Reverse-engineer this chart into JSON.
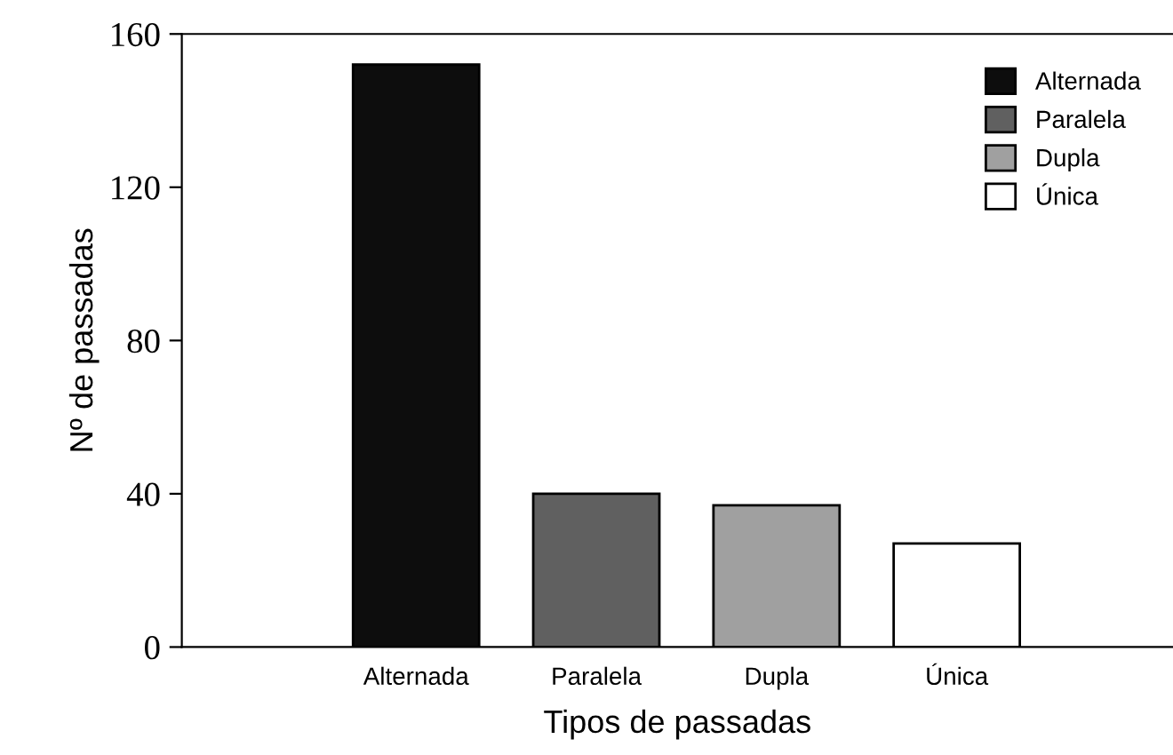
{
  "chart_data": {
    "type": "bar",
    "xlabel": "Tipos de passadas",
    "ylabel": "Nº de passadas",
    "categories": [
      "Alternada",
      "Paralela",
      "Dupla",
      "Única"
    ],
    "series": [
      {
        "name": "Alternada",
        "color": "#0d0d0d",
        "values": [
          152,
          null,
          null,
          null
        ]
      },
      {
        "name": "Paralela",
        "color": "#606060",
        "values": [
          null,
          40,
          null,
          null
        ]
      },
      {
        "name": "Dupla",
        "color": "#a0a0a0",
        "values": [
          null,
          null,
          37,
          null
        ]
      },
      {
        "name": "Única",
        "color": "#ffffff",
        "values": [
          null,
          null,
          null,
          27
        ]
      }
    ],
    "ylim": [
      0,
      160
    ],
    "yticks": [
      0,
      40,
      80,
      120,
      160
    ],
    "grid": false,
    "legend": "top right"
  }
}
